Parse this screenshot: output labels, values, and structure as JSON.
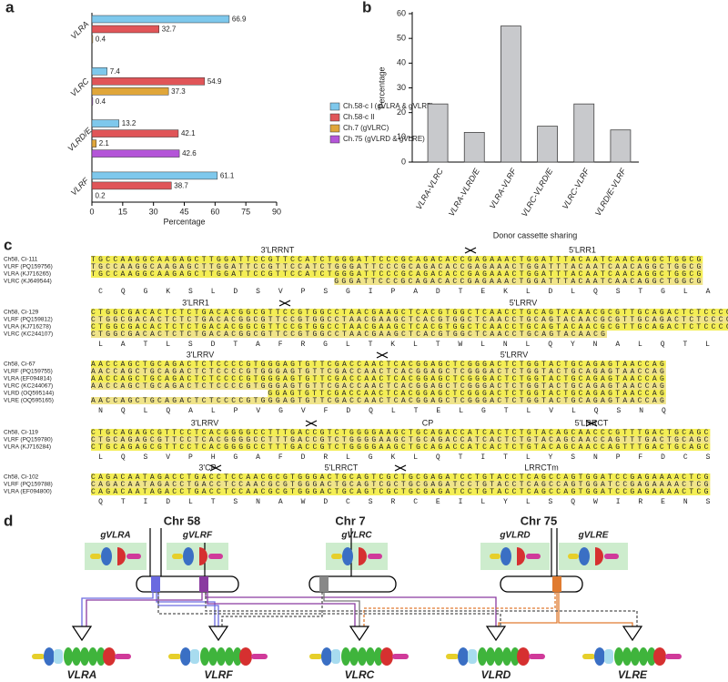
{
  "chart_data": [
    {
      "type": "bar",
      "horizontal": true,
      "panel": "a",
      "categories": [
        "VLRA",
        "VLRC",
        "VLRD/E",
        "VLRF"
      ],
      "series": [
        {
          "name": "Ch.58-c I (gVLRA & gVLRF)",
          "color": "#7ec8ec",
          "values": [
            66.9,
            7.4,
            13.2,
            61.1
          ]
        },
        {
          "name": "Ch.58-c II",
          "color": "#e05558",
          "values": [
            32.7,
            54.9,
            42.1,
            38.7
          ]
        },
        {
          "name": "Ch.7 (gVLRC)",
          "color": "#e0a63a",
          "values": [
            0.4,
            37.3,
            2.1,
            0.2
          ]
        },
        {
          "name": "Ch.75 (gVLRD & gVLRE)",
          "color": "#b455d8",
          "values": [
            null,
            0.4,
            42.6,
            null
          ]
        }
      ],
      "xlim": [
        0,
        90
      ],
      "xticks": [
        0,
        15,
        30,
        45,
        60,
        75,
        90
      ],
      "xlabel": "Percentage"
    },
    {
      "type": "bar",
      "panel": "b",
      "categories": [
        "VLRA-VLRC",
        "VLRA-VLRD/E",
        "VLRA-VLRF",
        "VLRC-VLRD/E",
        "VLRC-VLRF",
        "VLRD/E-VLRF"
      ],
      "values": [
        23.5,
        12,
        55,
        14.5,
        23.5,
        13
      ],
      "color": "#c8c9cc",
      "ylim": [
        0,
        60
      ],
      "yticks": [
        0,
        10,
        20,
        30,
        40,
        50,
        60
      ],
      "ylabel": "Percentage",
      "xlabel": "Donor cassette sharing"
    }
  ],
  "alignment": {
    "panel": "c",
    "blocks": [
      {
        "regions": [
          "3'LRRNT",
          "5'LRR1"
        ],
        "rows": [
          {
            "name": "Ch58, Ci-111",
            "seq": "TGCCAAGGCAAGAGCTTGGATTCCGTTCCATCTGGGATTCCCGCAGACACCGAGAAACTGGATTTACAATCAACAGGCTGGCG"
          },
          {
            "name": "VLRF (PQ159756)",
            "seq": "TGCCAAGGCAAGAGCTTGGATTCCGTTCCATCTGGGATTCCCGCAGACACCGAGAAACTGGATTTACAATCAACAGGCTGGCG"
          },
          {
            "name": "VLRA (KJ716265)",
            "seq": "TGCCAAGGCAAGAGCTTGGATTCCGTTCCATCTGGGATTCCCGCAGACACCGAGAAACTGGATTTACAATCAACAGGCTGGCG"
          },
          {
            "name": "VLRC (KJ649544)",
            "seq": "GGGATTCCCGCAGACACCGAGAAACTGGATTTACAATCAACAGGCTGGCG"
          }
        ],
        "aa": "CQGKSLDSVPSGIPADTEKLDLQSTGLA"
      },
      {
        "regions": [
          "3'LRR1",
          "5'LRRV"
        ],
        "rows": [
          {
            "name": "Ch58, Ci-129",
            "seq": "CTGGCGACACTCTCTGACACGGCGTTCCGTGGCCTAACGAAGCTCACGTGGCTCAACCTGCAGTACAACGCGTTGCAGACTCTCCCC"
          },
          {
            "name": "VLRF (PQ159812)",
            "seq": "CTGGCGACACTCTCTGACACGGCGTTCCGTGGCCTAACGAAGCTCACGTGGCTCAACCTGCAGTACAACGCGTTGCAGACTCTCCCC"
          },
          {
            "name": "VLRA (KJ716278)",
            "seq": "CTGGCGACACTCTCTGACACGGCGTTCCGTGGCCTAACGAAGCTCACGTGGCTCAACCTGCAGTACAACGCGTTGCAGACTCTCCCC"
          },
          {
            "name": "VLRC (KC244107)",
            "seq": "CTGGCGACACTCTCTGACACGGCGTTCCGTGGCCTAACGAAGCTCACGTGGCTCAACCTGCAGTACAACG"
          }
        ],
        "aa": "LATLSDTAFRGLTKLTWLNLQYNALQTLP"
      },
      {
        "regions": [
          "3'LRRV",
          "5'LRRV"
        ],
        "rows": [
          {
            "name": "Ch58, Ci-67",
            "seq": "AACCAGCTGCAGACTCTCCCCGTGGGAGTGTTCGACCAACTCACGGAGCTCGGGACTCTGGTACTGCAGAGTAACCAG"
          },
          {
            "name": "VLRF (PQ159755)",
            "seq": "AACCAGCTGCAGACTCTCCCCGTGGGAGTGTTCGACCAACTCACGGAGCTCGGGACTCTGGTACTGCAGAGTAACCAG"
          },
          {
            "name": "VLRA (EF094814)",
            "seq": "AACCAGCTGCAGACTCTCCCCGTGGGAGTGTTCGACCAACTCACGGAGCTCGGGACTCTGGTACTGCAGAGTAACCAG"
          },
          {
            "name": "VLRC (KC244067)",
            "seq": "AACCAGCTGCAGACTCTCCCCGTGGGAGTGTTCGACCAACTCACGGAGCTCGGGACTCTGGTACTGCAGAGTAACCAG"
          },
          {
            "name": "VLRD (OQ595144)",
            "seq": "GGAGTGTTCGACCAACTCACGGAGCTCGGGACTCTGGTACTGCAGAGTAACCAG"
          },
          {
            "name": "VLRE (OQ595165)",
            "seq": "AACCAGCTGCAGACTCTCCCCGTGGGAGTGTTCGACCAACTCACGGAGCTCGGGACTCTGGTACTGCAGAGTAACCAG"
          }
        ],
        "aa": "NQLQALPVGVFDQLTELGTLVLQSNQ"
      },
      {
        "regions": [
          "3'LRRV",
          "CP",
          "5'LRRCT"
        ],
        "rows": [
          {
            "name": "Ch58, Ci-119",
            "seq": "CTGCAGAGCGTTCCTCACGGGGCCTTTGACCGTCTGGGGAAGCTGCAGACCATCACTCTGTACAGCAACCCGTTTGACTGCAGC"
          },
          {
            "name": "VLRF (PQ159780)",
            "seq": "CTGCAGAGCGTTCCTCACGGGGCCTTTGACCGTCTGGGGAAGCTGCAGACCATCACTCTGTACAGCAACCAGTTTGACTGCAGC"
          },
          {
            "name": "VLRA (KJ716284)",
            "seq": "CTGCAGAGCGTTCCTCACGGGGCCTTTGACCGTCTGGGGAAGCTGCAGACCATCACTCTGTACAGCAACCAGTTTGACTGCAGC"
          }
        ],
        "aa": "LQSVPHGAFDRLGKLQTITLYSNPFDCS"
      },
      {
        "regions": [
          "3'CP",
          "5'LRRCT",
          "LRRCTm"
        ],
        "rows": [
          {
            "name": "Ch58, Ci-102",
            "seq": "CAGACAATAGACCTGACCTCCAACGCGTGGGACTGCAGTCGCTGCGAGATCCTGTACCTCAGCCAGTGGATCCGAGAAAACTCG"
          },
          {
            "name": "VLRF (PQ159788)",
            "seq": "CAGACAATAGACCTGACCTCCAACGCGTGGGACTGCAGTCGCTGCGAGATCCTGTACCTCAGCCAGTGGATCCGAGAAAACTCG"
          },
          {
            "name": "VLRA (EF094800)",
            "seq": "CAGACAATAGACCTGACCTCCAACGCGTGGGACTGCAGTCGCTGCGAGATCCTGTACCTCAGCCAGTGGATCCGAGAAAACTCG"
          }
        ],
        "aa": "QTIDLTSNAWDCSRCEILYLSQWIRENS"
      }
    ]
  },
  "diagram": {
    "panel": "d",
    "chromosomes": [
      "Chr 58",
      "Chr 7",
      "Chr 75"
    ],
    "genes": [
      "gVLRA",
      "gVLRF",
      "gVLRC",
      "gVLRD",
      "gVLRE"
    ],
    "products": [
      "VLRA",
      "VLRF",
      "VLRC",
      "VLRD",
      "VLRE"
    ]
  }
}
